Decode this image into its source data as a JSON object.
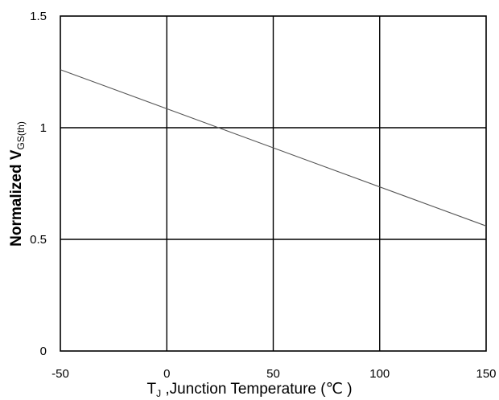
{
  "chart_data": {
    "type": "line",
    "title": "",
    "xlabel": {
      "symbol": "T",
      "subscript": "J",
      "text": " ,Junction Temperature (",
      "unit": "℃",
      "close": " )"
    },
    "ylabel": {
      "prefix": "Normalized V",
      "subscript": "GS(th)"
    },
    "xlim": [
      -50,
      150
    ],
    "ylim": [
      0,
      1.5
    ],
    "x_ticks": [
      -50,
      0,
      50,
      100,
      150
    ],
    "x_tick_labels": [
      "-50",
      "0",
      "50",
      "100",
      "150"
    ],
    "y_ticks": [
      0,
      0.5,
      1,
      1.5
    ],
    "y_tick_labels": [
      "0",
      "0.5",
      "1",
      "1.5"
    ],
    "grid": true,
    "series": [
      {
        "x": [
          -50,
          150
        ],
        "y": [
          1.26,
          0.56
        ]
      }
    ],
    "colors": {
      "line": "#555555",
      "grid": "#000000",
      "frame": "#000000"
    }
  }
}
